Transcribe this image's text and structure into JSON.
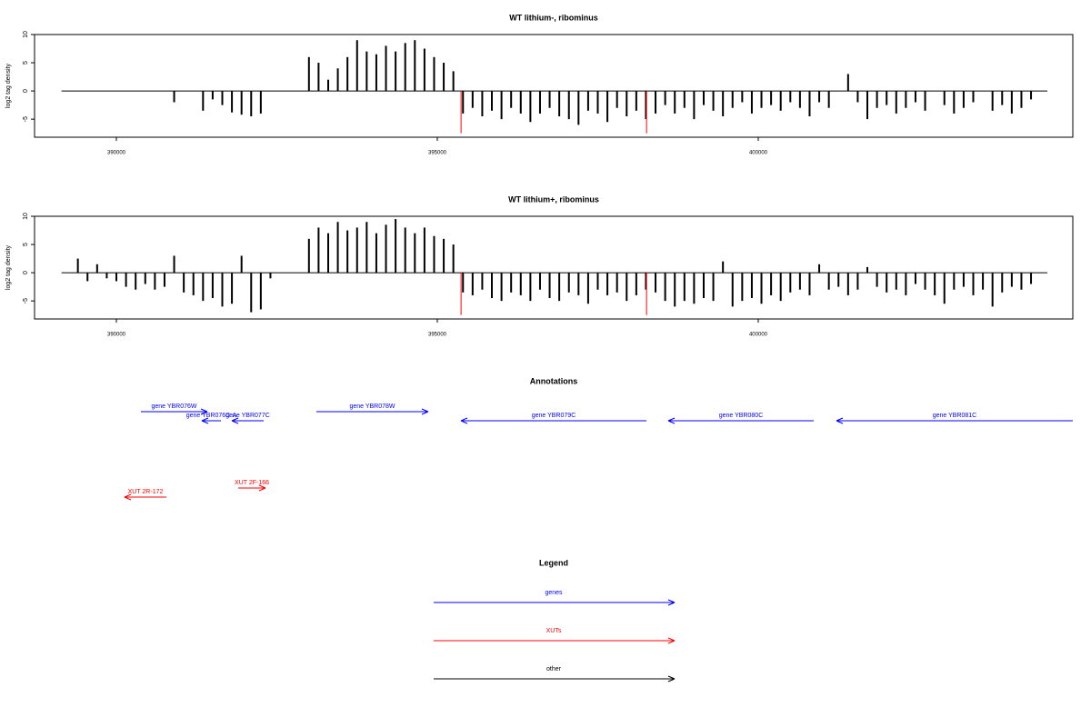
{
  "chart_data": [
    {
      "type": "bar",
      "title": "WT lithium-, ribominus",
      "y_label": "log2 tag density",
      "xlim": [
        388725,
        404901
      ],
      "ylim": [
        -8.2,
        10
      ],
      "xticks": [
        390000,
        395000,
        400000
      ],
      "yticks": [
        10,
        5,
        0,
        -5
      ],
      "series": [
        {
          "color": "#000000",
          "x": [
            389400,
            389550,
            389700,
            389850,
            390000,
            390150,
            390300,
            390450,
            390600,
            390750,
            390900,
            391050,
            391200,
            391350,
            391500,
            391650,
            391800,
            391950,
            392100,
            392250,
            392400,
            392550,
            392700,
            392850,
            393000,
            393150,
            393300,
            393450,
            393600,
            393750,
            393900,
            394050,
            394200,
            394350,
            394500,
            394650,
            394800,
            394950,
            395100,
            395250,
            395400,
            395550,
            395700,
            395850,
            396000,
            396150,
            396300,
            396450,
            396600,
            396750,
            396900,
            397050,
            397200,
            397350,
            397500,
            397650,
            397800,
            397950,
            398100,
            398250,
            398400,
            398550,
            398700,
            398850,
            399000,
            399150,
            399300,
            399450,
            399600,
            399750,
            399900,
            400050,
            400200,
            400350,
            400500,
            400650,
            400800,
            400950,
            401100,
            401250,
            401400,
            401550,
            401700,
            401850,
            402000,
            402150,
            402300,
            402450,
            402600,
            402750,
            402900,
            403050,
            403200,
            403350,
            403500,
            403650,
            403800,
            403950,
            404100,
            404250
          ],
          "values": [
            0,
            0,
            0,
            0,
            0,
            0,
            0,
            0,
            0,
            0,
            -2,
            0,
            0,
            -3.5,
            -1.5,
            -2.5,
            -3.8,
            -4.2,
            -4.5,
            -4,
            0,
            0,
            0,
            0,
            6,
            5,
            2,
            4,
            6,
            9,
            7,
            6.5,
            8,
            7,
            8.5,
            9,
            7.5,
            6,
            5,
            3.5,
            -4,
            -3,
            -4.5,
            -3.5,
            -5,
            -3,
            -4,
            -5.5,
            -4,
            -3,
            -4.5,
            -5,
            -6,
            -3.5,
            -4,
            -5.5,
            -3,
            -4.5,
            -3.5,
            -5,
            -4,
            -2.5,
            -4,
            -3,
            -5,
            -2.5,
            -3.5,
            -4.5,
            -3,
            -2,
            -4,
            -3,
            -2.5,
            -3.5,
            -2,
            -3,
            -4.5,
            -2,
            -3,
            0,
            3,
            -2,
            -5,
            -3,
            -2.5,
            -4,
            -3,
            -2,
            -3.5,
            0,
            -2.5,
            -4,
            -3,
            -2,
            0,
            -3.5,
            -2.5,
            -4,
            -3,
            -1.5
          ]
        },
        {
          "color": "#ff0000",
          "x": [
            395370,
            398260
          ],
          "values": [
            -7.5,
            -7.5
          ]
        }
      ]
    },
    {
      "type": "bar",
      "title": "WT lithium+, ribominus",
      "y_label": "log2 tag density",
      "xlim": [
        388725,
        404901
      ],
      "ylim": [
        -8.2,
        10
      ],
      "xticks": [
        390000,
        395000,
        400000
      ],
      "yticks": [
        10,
        5,
        0,
        -5
      ],
      "series": [
        {
          "color": "#000000",
          "x": [
            389400,
            389550,
            389700,
            389850,
            390000,
            390150,
            390300,
            390450,
            390600,
            390750,
            390900,
            391050,
            391200,
            391350,
            391500,
            391650,
            391800,
            391950,
            392100,
            392250,
            392400,
            392550,
            392700,
            392850,
            393000,
            393150,
            393300,
            393450,
            393600,
            393750,
            393900,
            394050,
            394200,
            394350,
            394500,
            394650,
            394800,
            394950,
            395100,
            395250,
            395400,
            395550,
            395700,
            395850,
            396000,
            396150,
            396300,
            396450,
            396600,
            396750,
            396900,
            397050,
            397200,
            397350,
            397500,
            397650,
            397800,
            397950,
            398100,
            398250,
            398400,
            398550,
            398700,
            398850,
            399000,
            399150,
            399300,
            399450,
            399600,
            399750,
            399900,
            400050,
            400200,
            400350,
            400500,
            400650,
            400800,
            400950,
            401100,
            401250,
            401400,
            401550,
            401700,
            401850,
            402000,
            402150,
            402300,
            402450,
            402600,
            402750,
            402900,
            403050,
            403200,
            403350,
            403500,
            403650,
            403800,
            403950,
            404100,
            404250
          ],
          "values": [
            2.5,
            -1.5,
            1.5,
            -1,
            -1.5,
            -2.5,
            -3,
            -2,
            -3,
            -2.5,
            3,
            -3.5,
            -4,
            -5,
            -4.5,
            -6,
            -5.5,
            3,
            -7,
            -6.5,
            -1,
            0,
            0,
            0,
            6,
            8,
            7,
            9,
            7.5,
            8,
            9,
            7,
            8.5,
            9.5,
            8,
            7,
            8,
            6.5,
            6,
            5,
            -3.5,
            -4,
            -3,
            -4.5,
            -5,
            -3.5,
            -4,
            -5,
            -3,
            -4.5,
            -5,
            -3.5,
            -4,
            -5.5,
            -3,
            -4,
            -3.5,
            -5,
            -4,
            -3,
            -3.5,
            -5,
            -6,
            -5,
            -5.5,
            -4.5,
            -5,
            2,
            -6,
            -5,
            -4.5,
            -5.5,
            -4,
            -5,
            -3.5,
            -3,
            -4,
            1.5,
            -3,
            -2.5,
            -4,
            -3,
            1,
            -2.5,
            -3.5,
            -3,
            -4,
            -2,
            -3,
            -4,
            -5.5,
            -3,
            -2.5,
            -4,
            -3,
            -6,
            -3.5,
            -2.5,
            -3,
            -2
          ]
        },
        {
          "color": "#ff0000",
          "x": [
            395370,
            398260
          ],
          "values": [
            -7.5,
            -7.5
          ]
        }
      ]
    }
  ],
  "annotations": {
    "title": "Annotations",
    "features": [
      {
        "label": "gene YBR076W",
        "start": 390382,
        "end": 391416,
        "strand": "+",
        "color": "#0000ff"
      },
      {
        "label": "gene YBR076C-A",
        "start": 391331,
        "end": 391629,
        "strand": "-",
        "color": "#0000ff"
      },
      {
        "label": "gene YBR077C",
        "start": 391799,
        "end": 392295,
        "strand": "-",
        "color": "#0000ff"
      },
      {
        "label": "gene YBR078W",
        "start": 393116,
        "end": 394858,
        "strand": "+",
        "color": "#0000ff"
      },
      {
        "label": "gene YBR079C",
        "start": 395368,
        "end": 398258,
        "strand": "-",
        "color": "#0000ff"
      },
      {
        "label": "gene YBR080C",
        "start": 398598,
        "end": 400864,
        "strand": "-",
        "color": "#0000ff"
      },
      {
        "label": "gene YBR081C",
        "start": 401218,
        "end": 404901,
        "strand": "-",
        "color": "#0000ff"
      },
      {
        "label": "XUT 2R-172",
        "start": 390127,
        "end": 390779,
        "strand": "-",
        "color": "#ff0000"
      },
      {
        "label": "XUT 2F-166",
        "start": 391898,
        "end": 392323,
        "strand": "+",
        "color": "#ff0000"
      }
    ]
  },
  "legend": {
    "title": "Legend",
    "items": [
      {
        "label": "genes",
        "color": "#0000ff"
      },
      {
        "label": "XUTs",
        "color": "#ff0000"
      },
      {
        "label": "other",
        "color": "#000000"
      }
    ]
  }
}
